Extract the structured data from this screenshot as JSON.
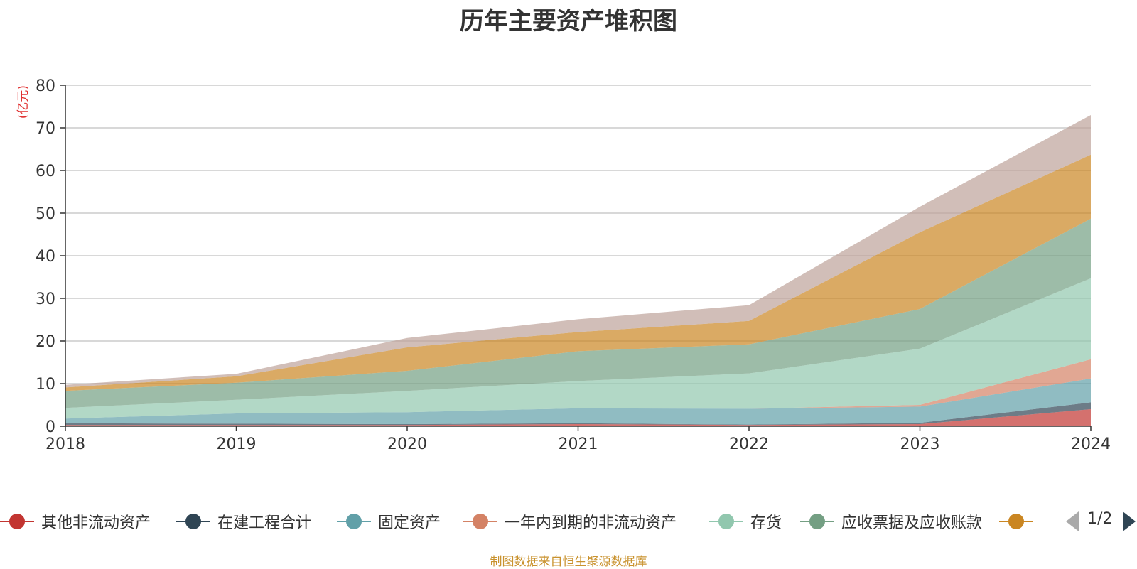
{
  "chart_data": {
    "type": "area",
    "stacked": true,
    "title": "历年主要资产堆积图",
    "ylabel": "(亿元)",
    "xlabel": "",
    "categories": [
      "2018",
      "2019",
      "2020",
      "2021",
      "2022",
      "2023",
      "2024"
    ],
    "ylim": [
      0,
      80
    ],
    "yticks": [
      0,
      10,
      20,
      30,
      40,
      50,
      60,
      70,
      80
    ],
    "grid": true,
    "series": [
      {
        "name": "其他非流动资产",
        "color": "#c23531",
        "values": [
          0.3,
          0.3,
          0.3,
          0.5,
          0.3,
          0.5,
          4.0
        ]
      },
      {
        "name": "在建工程合计",
        "color": "#2f4554",
        "values": [
          0.4,
          0.3,
          0.2,
          0.2,
          0.1,
          0.3,
          1.6
        ]
      },
      {
        "name": "固定资产",
        "color": "#61a0a8",
        "values": [
          1.1,
          2.4,
          2.8,
          3.5,
          3.7,
          3.8,
          5.6
        ]
      },
      {
        "name": "一年内到期的非流动资产",
        "color": "#d48265",
        "values": [
          0.0,
          0.0,
          0.0,
          0.0,
          0.0,
          0.4,
          4.5
        ]
      },
      {
        "name": "存货",
        "color": "#91c7ae",
        "values": [
          2.5,
          3.2,
          5.0,
          6.4,
          8.3,
          13.2,
          19.0
        ]
      },
      {
        "name": "应收票据及应收账款",
        "color": "#749f83",
        "values": [
          4.0,
          4.0,
          4.7,
          7.0,
          6.8,
          9.3,
          14.0
        ]
      },
      {
        "name": "",
        "color": "#ca8622",
        "values": [
          0.8,
          1.5,
          5.5,
          4.5,
          5.5,
          18.0,
          15.0
        ]
      },
      {
        "name": "",
        "color": "#bda29a",
        "values": [
          0.6,
          0.6,
          2.2,
          3.0,
          3.7,
          6.0,
          9.3
        ]
      }
    ]
  },
  "legend": {
    "visible_count": 7,
    "page": "1/2"
  },
  "footer": "制图数据来自恒生聚源数据库"
}
